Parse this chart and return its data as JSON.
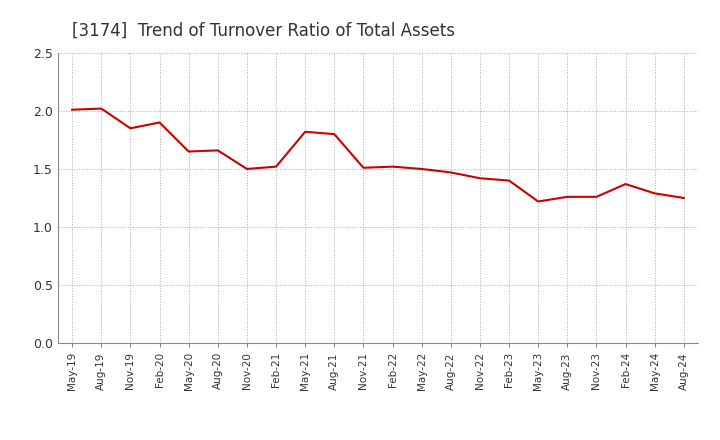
{
  "title": "[3174]  Trend of Turnover Ratio of Total Assets",
  "title_fontsize": 12,
  "ylim": [
    0.0,
    2.5
  ],
  "yticks": [
    0.0,
    0.5,
    1.0,
    1.5,
    2.0,
    2.5
  ],
  "line_color": "#cc0000",
  "background_color": "#ffffff",
  "grid_color": "#aaaaaa",
  "x_labels": [
    "May-19",
    "Aug-19",
    "Nov-19",
    "Feb-20",
    "May-20",
    "Aug-20",
    "Nov-20",
    "Feb-21",
    "May-21",
    "Aug-21",
    "Nov-21",
    "Feb-22",
    "May-22",
    "Aug-22",
    "Nov-22",
    "Feb-23",
    "May-23",
    "Aug-23",
    "Nov-23",
    "Feb-24",
    "May-24",
    "Aug-24"
  ],
  "y_vals": [
    2.01,
    2.02,
    1.85,
    1.9,
    1.65,
    1.66,
    1.5,
    1.52,
    1.82,
    1.8,
    1.51,
    1.52,
    1.5,
    1.47,
    1.42,
    1.4,
    1.22,
    1.26,
    1.26,
    1.37,
    1.29,
    1.25
  ]
}
